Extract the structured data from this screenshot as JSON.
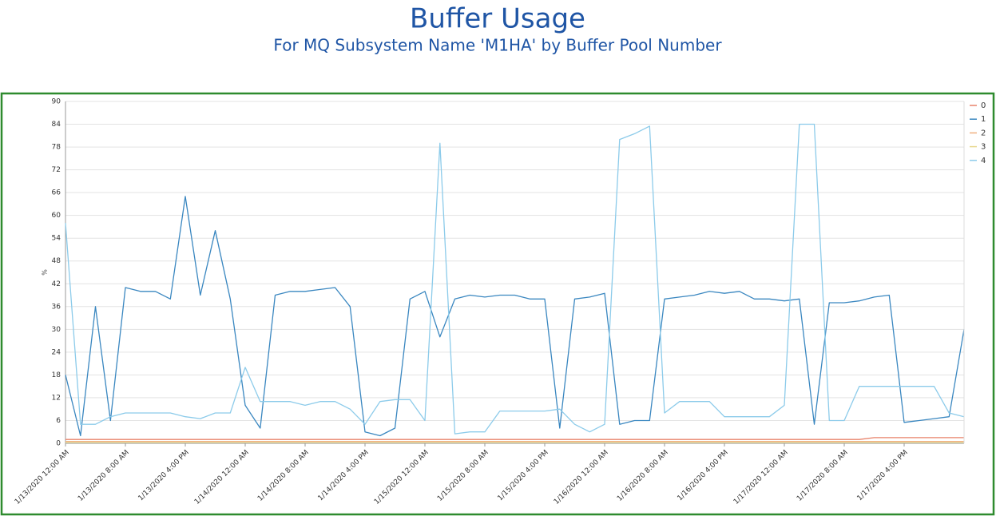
{
  "chart_data": {
    "type": "line",
    "title": "Buffer Usage",
    "subtitle": "For MQ Subsystem Name 'M1HA' by Buffer Pool Number",
    "y_label": "%",
    "categories": [
      "1/13/2020 12:00 AM",
      null,
      null,
      null,
      "1/13/2020 8:00 AM",
      null,
      null,
      null,
      "1/13/2020 4:00 PM",
      null,
      null,
      null,
      "1/14/2020 12:00 AM",
      null,
      null,
      null,
      "1/14/2020 8:00 AM",
      null,
      null,
      null,
      "1/14/2020 4:00 PM",
      null,
      null,
      null,
      "1/15/2020 12:00 AM",
      null,
      null,
      null,
      "1/15/2020 8:00 AM",
      null,
      null,
      null,
      "1/15/2020 4:00 PM",
      null,
      null,
      null,
      "1/16/2020 12:00 AM",
      null,
      null,
      null,
      "1/16/2020 8:00 AM",
      null,
      null,
      null,
      "1/16/2020 4:00 PM",
      null,
      null,
      null,
      "1/17/2020 12:00 AM",
      null,
      null,
      null,
      "1/17/2020 8:00 AM",
      null,
      null,
      null,
      "1/17/2020 4:00 PM",
      null,
      null,
      null,
      null
    ],
    "ylim": [
      0,
      90
    ],
    "yticks": [
      0,
      6,
      12,
      18,
      24,
      30,
      36,
      42,
      48,
      54,
      60,
      66,
      72,
      78,
      84,
      90
    ],
    "grid": true,
    "legend": "top-right",
    "series": [
      {
        "name": "0",
        "color": "#e8826a",
        "values": [
          1,
          1,
          1,
          1,
          1,
          1,
          1,
          1,
          1,
          1,
          1,
          1,
          1,
          1,
          1,
          1,
          1,
          1,
          1,
          1,
          1,
          1,
          1,
          1,
          1,
          1,
          1,
          1,
          1,
          1,
          1,
          1,
          1,
          1,
          1,
          1,
          1,
          1,
          1,
          1,
          1,
          1,
          1,
          1,
          1,
          1,
          1,
          1,
          1,
          1,
          1,
          1,
          1,
          1,
          1.5,
          1.5,
          1.5,
          1.5,
          1.5,
          1.5,
          1.5
        ]
      },
      {
        "name": "1",
        "color": "#3a87c0",
        "values": [
          18,
          2,
          36,
          6,
          41,
          40,
          40,
          38,
          65,
          39,
          56,
          38,
          10,
          4,
          39,
          40,
          40,
          40.5,
          41,
          36,
          3,
          2,
          4,
          38,
          40,
          28,
          38,
          39,
          38.5,
          39,
          39,
          38,
          38,
          4,
          38,
          38.5,
          39.5,
          5,
          6,
          6,
          38,
          38.5,
          39,
          40,
          39.5,
          40,
          38,
          38,
          37.5,
          38,
          5,
          37,
          37,
          37.5,
          38.5,
          39,
          5.5,
          6,
          6.5,
          7,
          30
        ]
      },
      {
        "name": "2",
        "color": "#f0b080",
        "values": [
          0.5,
          0.5,
          0.5,
          0.5,
          0.5,
          0.5,
          0.5,
          0.5,
          0.5,
          0.5,
          0.5,
          0.5,
          0.5,
          0.5,
          0.5,
          0.5,
          0.5,
          0.5,
          0.5,
          0.5,
          0.5,
          0.5,
          0.5,
          0.5,
          0.5,
          0.5,
          0.5,
          0.5,
          0.5,
          0.5,
          0.5,
          0.5,
          0.5,
          0.5,
          0.5,
          0.5,
          0.5,
          0.5,
          0.5,
          0.5,
          0.5,
          0.5,
          0.5,
          0.5,
          0.5,
          0.5,
          0.5,
          0.5,
          0.5,
          0.5,
          0.5,
          0.5,
          0.5,
          0.5,
          0.5,
          0.5,
          0.5,
          0.5,
          0.5,
          0.5,
          0.5
        ]
      },
      {
        "name": "3",
        "color": "#e8d890",
        "values": [
          0.2,
          0.2,
          0.2,
          0.2,
          0.2,
          0.2,
          0.2,
          0.2,
          0.2,
          0.2,
          0.2,
          0.2,
          0.2,
          0.2,
          0.2,
          0.2,
          0.2,
          0.2,
          0.2,
          0.2,
          0.2,
          0.2,
          0.2,
          0.2,
          0.2,
          0.2,
          0.2,
          0.2,
          0.2,
          0.2,
          0.2,
          0.2,
          0.2,
          0.2,
          0.2,
          0.2,
          0.2,
          0.2,
          0.2,
          0.2,
          0.2,
          0.2,
          0.2,
          0.2,
          0.2,
          0.2,
          0.2,
          0.2,
          0.2,
          0.2,
          0.2,
          0.2,
          0.2,
          0.2,
          0.2,
          0.2,
          0.2,
          0.2,
          0.2,
          0.2,
          0.2
        ]
      },
      {
        "name": "4",
        "color": "#8ccbea",
        "values": [
          58,
          5,
          5,
          7,
          8,
          8,
          8,
          8,
          7,
          6.5,
          8,
          8,
          20,
          11,
          11,
          11,
          10,
          11,
          11,
          9,
          5,
          11,
          11.5,
          11.5,
          6,
          79,
          2.5,
          3,
          3,
          8.5,
          8.5,
          8.5,
          8.5,
          9,
          5,
          3,
          5,
          80,
          81.5,
          83.5,
          8,
          11,
          11,
          11,
          7,
          7,
          7,
          7,
          10,
          84,
          84,
          6,
          6,
          15,
          15,
          15,
          15,
          15,
          15,
          8,
          7
        ]
      }
    ]
  }
}
